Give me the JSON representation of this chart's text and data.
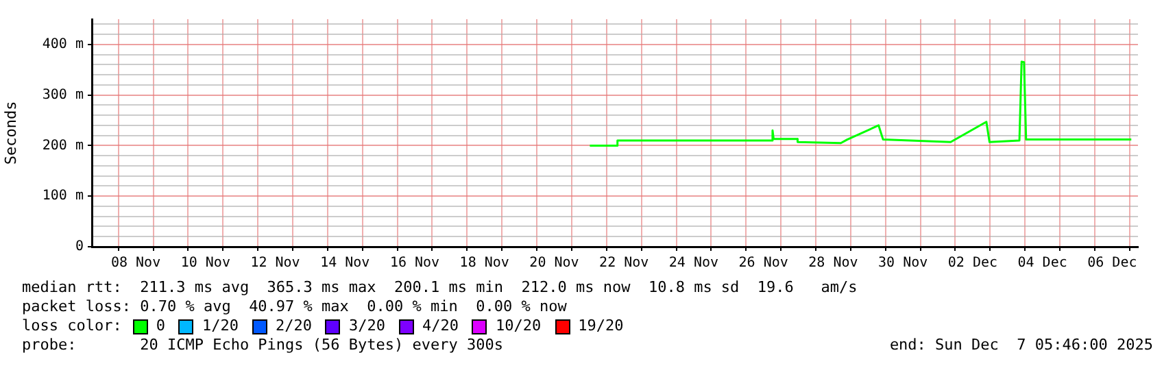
{
  "chart_data": {
    "type": "line",
    "ylabel": "Seconds",
    "legend_title": "loss color:",
    "legend": "bottom",
    "grid": true,
    "marker": "none",
    "line_style": "solid",
    "x": [
      "2025-11-21T12:30",
      "2025-11-22T07:30",
      "2025-11-22T07:31",
      "2025-11-26T18:00",
      "2025-11-26T18:15",
      "2025-11-26T19:00",
      "2025-11-27T11:30",
      "2025-11-27T11:31",
      "2025-11-28T17:15",
      "2025-11-28T21:40",
      "2025-11-29T19:15",
      "2025-11-29T22:20",
      "2025-12-01T20:50",
      "2025-12-02T21:25",
      "2025-12-02T23:35",
      "2025-12-03T20:10",
      "2025-12-03T21:40",
      "2025-12-03T23:20",
      "2025-12-04T00:45",
      "2025-12-07T01:10"
    ],
    "series": [
      {
        "name": "0",
        "color": "#00ff00",
        "values": [
          200,
          200,
          210,
          210,
          230,
          213,
          213,
          207,
          205,
          212,
          240,
          212,
          207,
          247,
          207,
          210,
          366,
          365,
          212,
          212
        ]
      },
      {
        "name": "1/20",
        "color": "#00b8ff",
        "values": [
          null,
          null,
          null,
          null,
          null,
          null,
          null,
          null,
          null,
          null,
          null,
          null,
          null,
          null,
          null,
          null,
          null,
          null,
          null,
          null
        ]
      },
      {
        "name": "2/20",
        "color": "#0059ff",
        "values": [
          null,
          null,
          null,
          null,
          null,
          null,
          null,
          null,
          null,
          null,
          null,
          null,
          null,
          null,
          null,
          null,
          null,
          null,
          null,
          null
        ]
      },
      {
        "name": "3/20",
        "color": "#5e00ff",
        "values": [
          null,
          null,
          null,
          null,
          null,
          null,
          null,
          null,
          null,
          null,
          null,
          null,
          null,
          null,
          null,
          null,
          null,
          null,
          null,
          null
        ]
      },
      {
        "name": "4/20",
        "color": "#7e00ff",
        "values": [
          null,
          null,
          null,
          null,
          null,
          null,
          null,
          null,
          null,
          null,
          null,
          null,
          null,
          null,
          null,
          null,
          null,
          null,
          null,
          null
        ]
      },
      {
        "name": "10/20",
        "color": "#dd00ff",
        "values": [
          null,
          null,
          null,
          null,
          null,
          null,
          null,
          null,
          null,
          null,
          null,
          null,
          null,
          null,
          null,
          null,
          null,
          null,
          null,
          null
        ]
      },
      {
        "name": "19/20",
        "color": "#ff0000",
        "values": [
          null,
          null,
          null,
          null,
          null,
          null,
          null,
          null,
          null,
          null,
          null,
          null,
          null,
          null,
          null,
          null,
          null,
          null,
          null,
          null
        ]
      }
    ],
    "xlim": [
      "2025-11-07T05:46",
      "2025-12-07T05:46"
    ],
    "xticks": [
      {
        "value": "2025-11-08T00:00",
        "label": null
      },
      {
        "value": "2025-11-08T12:00",
        "label": "08 Nov"
      },
      {
        "value": "2025-11-09T00:00",
        "label": null
      },
      {
        "value": "2025-11-10T00:00",
        "label": null
      },
      {
        "value": "2025-11-10T12:00",
        "label": "10 Nov"
      },
      {
        "value": "2025-11-11T00:00",
        "label": null
      },
      {
        "value": "2025-11-12T00:00",
        "label": null
      },
      {
        "value": "2025-11-12T12:00",
        "label": "12 Nov"
      },
      {
        "value": "2025-11-13T00:00",
        "label": null
      },
      {
        "value": "2025-11-14T00:00",
        "label": null
      },
      {
        "value": "2025-11-14T12:00",
        "label": "14 Nov"
      },
      {
        "value": "2025-11-15T00:00",
        "label": null
      },
      {
        "value": "2025-11-16T00:00",
        "label": null
      },
      {
        "value": "2025-11-16T12:00",
        "label": "16 Nov"
      },
      {
        "value": "2025-11-17T00:00",
        "label": null
      },
      {
        "value": "2025-11-18T00:00",
        "label": null
      },
      {
        "value": "2025-11-18T12:00",
        "label": "18 Nov"
      },
      {
        "value": "2025-11-19T00:00",
        "label": null
      },
      {
        "value": "2025-11-20T00:00",
        "label": null
      },
      {
        "value": "2025-11-20T12:00",
        "label": "20 Nov"
      },
      {
        "value": "2025-11-21T00:00",
        "label": null
      },
      {
        "value": "2025-11-22T00:00",
        "label": null
      },
      {
        "value": "2025-11-22T12:00",
        "label": "22 Nov"
      },
      {
        "value": "2025-11-23T00:00",
        "label": null
      },
      {
        "value": "2025-11-24T00:00",
        "label": null
      },
      {
        "value": "2025-11-24T12:00",
        "label": "24 Nov"
      },
      {
        "value": "2025-11-25T00:00",
        "label": null
      },
      {
        "value": "2025-11-26T00:00",
        "label": null
      },
      {
        "value": "2025-11-26T12:00",
        "label": "26 Nov"
      },
      {
        "value": "2025-11-27T00:00",
        "label": null
      },
      {
        "value": "2025-11-28T00:00",
        "label": null
      },
      {
        "value": "2025-11-28T12:00",
        "label": "28 Nov"
      },
      {
        "value": "2025-11-29T00:00",
        "label": null
      },
      {
        "value": "2025-11-30T00:00",
        "label": null
      },
      {
        "value": "2025-11-30T12:00",
        "label": "30 Nov"
      },
      {
        "value": "2025-12-01T00:00",
        "label": null
      },
      {
        "value": "2025-12-02T00:00",
        "label": null
      },
      {
        "value": "2025-12-02T12:00",
        "label": "02 Dec"
      },
      {
        "value": "2025-12-03T00:00",
        "label": null
      },
      {
        "value": "2025-12-04T00:00",
        "label": null
      },
      {
        "value": "2025-12-04T12:00",
        "label": "04 Dec"
      },
      {
        "value": "2025-12-05T00:00",
        "label": null
      },
      {
        "value": "2025-12-06T00:00",
        "label": null
      },
      {
        "value": "2025-12-06T12:00",
        "label": "06 Dec"
      },
      {
        "value": "2025-12-07T00:00",
        "label": null
      }
    ],
    "ylim": [
      0,
      450
    ],
    "yticks": [
      0,
      {
        "value": 20,
        "label": null
      },
      {
        "value": 40,
        "label": null
      },
      {
        "value": 60,
        "label": null
      },
      {
        "value": 80,
        "label": null
      },
      {
        "value": 100,
        "label": "100 m"
      },
      {
        "value": 120,
        "label": null
      },
      {
        "value": 140,
        "label": null
      },
      {
        "value": 160,
        "label": null
      },
      {
        "value": 180,
        "label": null
      },
      {
        "value": 200,
        "label": "200 m"
      },
      {
        "value": 220,
        "label": null
      },
      {
        "value": 240,
        "label": null
      },
      {
        "value": 260,
        "label": null
      },
      {
        "value": 280,
        "label": null
      },
      {
        "value": 300,
        "label": "300 m"
      },
      {
        "value": 320,
        "label": null
      },
      {
        "value": 340,
        "label": null
      },
      {
        "value": 360,
        "label": null
      },
      {
        "value": 380,
        "label": null
      },
      {
        "value": 400,
        "label": "400 m"
      },
      {
        "value": 420,
        "label": null
      },
      {
        "value": 440,
        "label": null
      }
    ],
    "annotations": [
      "median rtt:  211.3 ms avg  365.3 ms max  200.1 ms min  212.0 ms now  10.8 ms sd  19.6   am/s",
      "packet loss: 0.70 % avg  40.97 % max  0.00 % min  0.00 % now",
      "probe:       20 ICMP Echo Pings (56 Bytes) every 300s",
      "end: Sun Dec  7 05:46:00 2025"
    ]
  }
}
